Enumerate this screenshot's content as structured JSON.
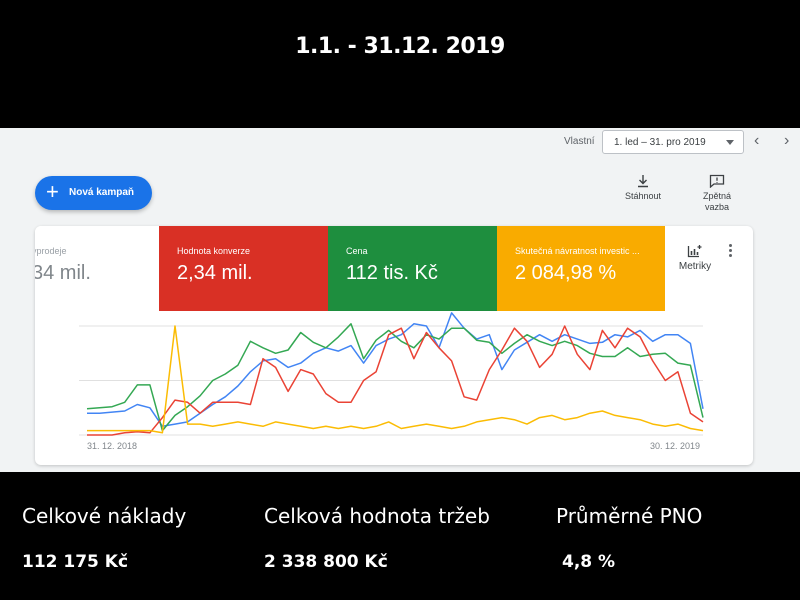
{
  "header": {
    "date_range_title": "1.1. - 31.12. 2019"
  },
  "toolbar": {
    "range_label": "Vlastní",
    "range_value": "1. led – 31. pro 2019",
    "prev_icon": "chevron-left-icon",
    "next_icon": "chevron-right-icon",
    "new_campaign_label": "Nová kampaň",
    "download_label": "Stáhnout",
    "feedback_label_1": "Zpětná",
    "feedback_label_2": "vazba",
    "metrics_label": "Metriky"
  },
  "tiles": [
    {
      "label": "vprodeje",
      "value": "34 mil."
    },
    {
      "label": "Hodnota konverze",
      "value": "2,34 mil.",
      "color": "#d93025"
    },
    {
      "label": "Cena",
      "value": "112 tis. Kč",
      "color": "#1e8e3e"
    },
    {
      "label": "Skutečná návratnost investic ...",
      "value": "2 084,98 %",
      "color": "#f9ab00"
    }
  ],
  "chart_data": {
    "type": "line",
    "x_start_label": "31. 12. 2018",
    "x_end_label": "30. 12. 2019",
    "grid": true,
    "series": [
      {
        "color": "#4285f4",
        "values": [
          20,
          20,
          21,
          22,
          28,
          25,
          8,
          10,
          12,
          20,
          28,
          35,
          45,
          58,
          68,
          70,
          62,
          66,
          75,
          80,
          77,
          82,
          66,
          82,
          88,
          92,
          102,
          100,
          80,
          112,
          98,
          88,
          92,
          60,
          78,
          85,
          92,
          86,
          92,
          88,
          84,
          85,
          92,
          90,
          96,
          86,
          92,
          92,
          84,
          24
        ]
      },
      {
        "color": "#34a853",
        "values": [
          24,
          25,
          26,
          30,
          46,
          46,
          4,
          18,
          26,
          36,
          50,
          56,
          64,
          86,
          80,
          75,
          78,
          94,
          85,
          80,
          90,
          102,
          70,
          87,
          96,
          86,
          80,
          92,
          88,
          98,
          98,
          87,
          85,
          75,
          84,
          92,
          86,
          82,
          86,
          82,
          75,
          72,
          72,
          80,
          72,
          74,
          75,
          66,
          64,
          16
        ]
      },
      {
        "color": "#ea4335",
        "values": [
          0,
          0,
          0,
          2,
          3,
          2,
          16,
          32,
          30,
          20,
          30,
          30,
          30,
          28,
          70,
          62,
          40,
          60,
          56,
          38,
          30,
          30,
          50,
          58,
          92,
          98,
          70,
          94,
          80,
          68,
          35,
          32,
          60,
          78,
          98,
          86,
          62,
          74,
          100,
          74,
          60,
          96,
          80,
          98,
          90,
          68,
          50,
          58,
          20,
          12
        ]
      },
      {
        "color": "#fbbc04",
        "values": [
          4,
          4,
          4,
          4,
          4,
          4,
          2,
          100,
          10,
          10,
          8,
          10,
          12,
          10,
          8,
          12,
          10,
          8,
          6,
          8,
          6,
          8,
          6,
          8,
          12,
          6,
          8,
          10,
          8,
          6,
          8,
          12,
          14,
          16,
          14,
          10,
          16,
          18,
          14,
          16,
          20,
          22,
          18,
          16,
          14,
          10,
          8,
          10,
          6,
          4
        ]
      }
    ]
  },
  "stats": [
    {
      "label": "Celkové náklady",
      "value": "112 175 Kč"
    },
    {
      "label": "Celková hodnota tržeb",
      "value": "2 338 800 Kč"
    },
    {
      "label": "Průměrné PNO",
      "value": "4,8 %"
    }
  ]
}
